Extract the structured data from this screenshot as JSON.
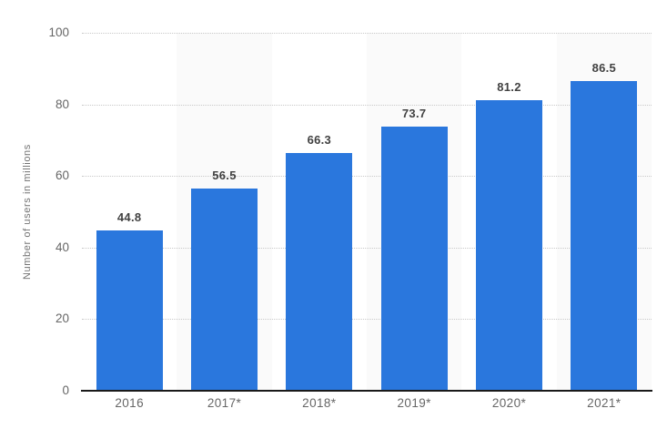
{
  "chart_data": {
    "type": "bar",
    "title": "",
    "categories": [
      "2016",
      "2017*",
      "2018*",
      "2019*",
      "2020*",
      "2021*"
    ],
    "values": [
      44.8,
      56.5,
      66.3,
      73.7,
      81.2,
      86.5
    ],
    "value_labels": [
      "44.8",
      "56.5",
      "66.3",
      "73.7",
      "81.2",
      "86.5"
    ],
    "xlabel": "",
    "ylabel": "Number of users in millions",
    "ylim": [
      0,
      100
    ],
    "yticks": [
      0,
      20,
      40,
      60,
      80,
      100
    ],
    "grid": "horizontal-dotted",
    "legend": "none",
    "bar_color": "#2a77dd",
    "band_color": "#fafafa",
    "gridline_color": "#c9c9c9",
    "axis_line_color": "#1a1a1a",
    "tick_label_color": "#666666",
    "value_label_color": "#414141",
    "alternating_column_bands": true
  }
}
